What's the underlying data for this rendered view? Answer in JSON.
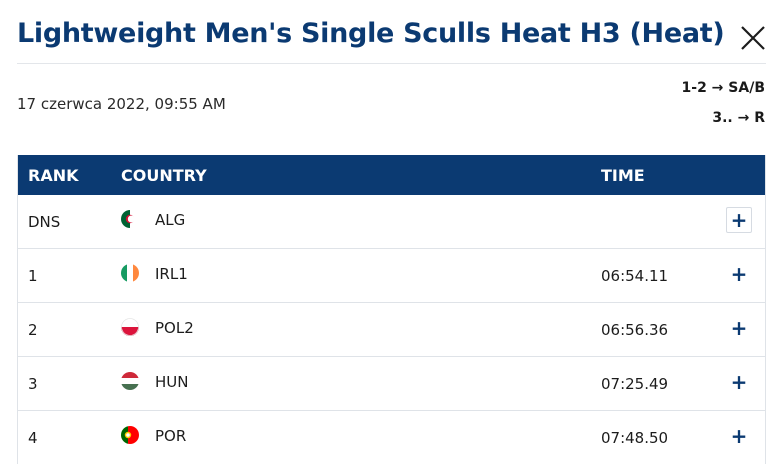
{
  "header": {
    "title": "Lightweight Men's Single Sculls Heat H3 (Heat)"
  },
  "info": {
    "date": "17 czerwca 2022, 09:55 AM",
    "progression": [
      "1-2 → SA/B",
      "3.. → R"
    ]
  },
  "table": {
    "columns": {
      "rank": "RANK",
      "country": "COUNTRY",
      "time": "TIME"
    },
    "rows": [
      {
        "rank": "DNS",
        "code": "ALG",
        "time": "",
        "flag": "alg-flag"
      },
      {
        "rank": "1",
        "code": "IRL1",
        "time": "06:54.11",
        "flag": "irl-flag"
      },
      {
        "rank": "2",
        "code": "POL2",
        "time": "06:56.36",
        "flag": "pol-flag"
      },
      {
        "rank": "3",
        "code": "HUN",
        "time": "07:25.49",
        "flag": "hun-flag"
      },
      {
        "rank": "4",
        "code": "POR",
        "time": "07:48.50",
        "flag": "por-flag"
      }
    ],
    "expand_symbol": "+"
  },
  "colors": {
    "primary": "#0b3a72",
    "border": "#dfe3e8"
  },
  "icons": {
    "close": "close-icon",
    "expand": "plus-icon"
  }
}
